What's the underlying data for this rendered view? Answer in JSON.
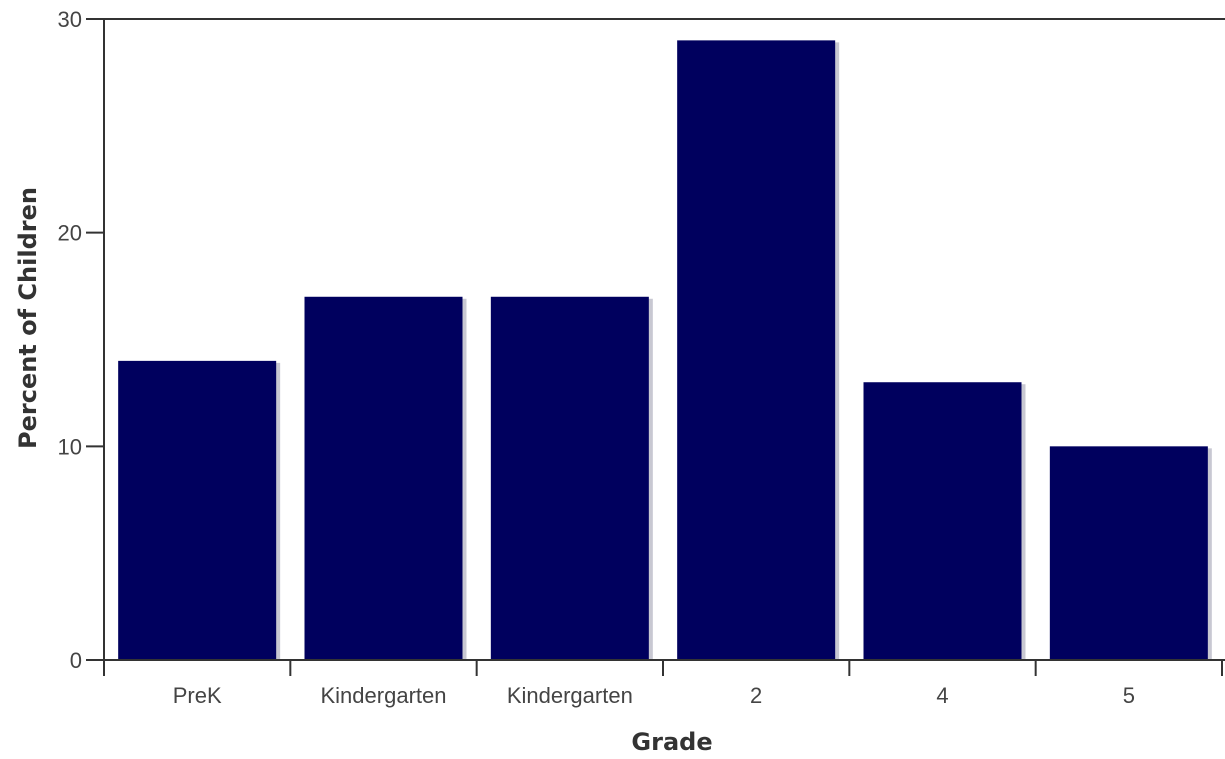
{
  "chart_data": {
    "type": "bar",
    "categories": [
      "PreK",
      "Kindergarten",
      "Kindergarten",
      "2",
      "4",
      "5"
    ],
    "values": [
      14,
      17,
      17,
      29,
      13,
      10
    ],
    "title": "",
    "xlabel": "Grade",
    "ylabel": "Percent of Children",
    "ylim": [
      0,
      30
    ],
    "yticks": [
      "0",
      "10",
      "20",
      "30"
    ],
    "grid": false,
    "legend": "none",
    "colors": {
      "bar": "#00005e",
      "bar_shadow": "#c8c8d2",
      "axis": "#333333"
    }
  }
}
